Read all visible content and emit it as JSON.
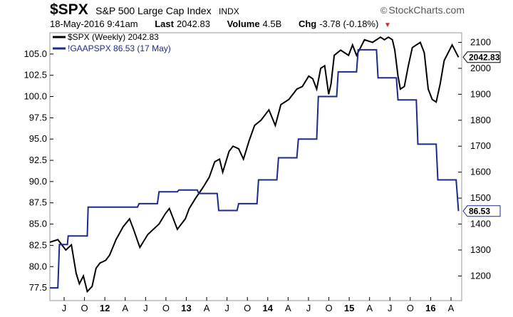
{
  "header": {
    "symbol": "$SPX",
    "index_name": "S&P 500 Large Cap Index",
    "exchange": "INDX",
    "brand": "StockCharts.com",
    "date": "18-May-2016 9:41am",
    "last_label": "Last",
    "last_value": "2042.83",
    "volume_label": "Volume",
    "volume_value": "4.5B",
    "chg_label": "Chg",
    "chg_value": "-3.78 (-0.18%)"
  },
  "chart_data": {
    "type": "line",
    "legend": {
      "placement": "top-left",
      "entries": [
        "$SPX (Weekly) 2042.83",
        "!GAAPSPX 86.53 (17 May)"
      ]
    },
    "x_ticks": [
      "J",
      "O",
      "12",
      "A",
      "J",
      "O",
      "13",
      "A",
      "J",
      "O",
      "14",
      "A",
      "J",
      "O",
      "15",
      "A",
      "J",
      "O",
      "16",
      "A"
    ],
    "left_axis": {
      "ylim": [
        76.0,
        107.5
      ],
      "ticks": [
        "77.5",
        "80.0",
        "82.5",
        "85.0",
        "87.5",
        "90.0",
        "92.5",
        "95.0",
        "97.5",
        "100.0",
        "102.5",
        "105.0"
      ]
    },
    "right_axis": {
      "ylim": [
        1105,
        2137
      ],
      "ticks": [
        "1200",
        "1300",
        "1400",
        "1500",
        "1600",
        "1700",
        "1800",
        "1900",
        "2000",
        "2100"
      ]
    },
    "grid": false,
    "series": [
      {
        "name": "$SPX (Weekly)",
        "axis": "right",
        "color": "#000000",
        "last_label": "2042.83",
        "x": [
          2011.25,
          2011.35,
          2011.45,
          2011.52,
          2011.58,
          2011.62,
          2011.67,
          2011.72,
          2011.78,
          2011.83,
          2011.88,
          2011.95,
          2012.0,
          2012.08,
          2012.17,
          2012.25,
          2012.3,
          2012.38,
          2012.42,
          2012.48,
          2012.55,
          2012.62,
          2012.7,
          2012.75,
          2012.8,
          2012.85,
          2012.9,
          2012.95,
          2013.0,
          2013.08,
          2013.17,
          2013.25,
          2013.32,
          2013.38,
          2013.42,
          2013.5,
          2013.55,
          2013.62,
          2013.68,
          2013.75,
          2013.82,
          2013.9,
          2014.0,
          2014.08,
          2014.15,
          2014.25,
          2014.35,
          2014.42,
          2014.5,
          2014.55,
          2014.6,
          2014.65,
          2014.7,
          2014.75,
          2014.78,
          2014.82,
          2014.9,
          2015.0,
          2015.05,
          2015.1,
          2015.2,
          2015.3,
          2015.4,
          2015.45,
          2015.5,
          2015.55,
          2015.58,
          2015.62,
          2015.65,
          2015.7,
          2015.75,
          2015.8,
          2015.85,
          2015.9,
          2015.95,
          2016.0,
          2016.05,
          2016.1,
          2016.15,
          2016.2,
          2016.25,
          2016.3,
          2016.38
        ],
        "y": [
          1330,
          1340,
          1300,
          1320,
          1210,
          1170,
          1200,
          1140,
          1160,
          1230,
          1250,
          1260,
          1280,
          1340,
          1390,
          1420,
          1380,
          1310,
          1330,
          1360,
          1380,
          1400,
          1440,
          1460,
          1420,
          1380,
          1400,
          1420,
          1460,
          1500,
          1540,
          1580,
          1640,
          1650,
          1600,
          1680,
          1700,
          1690,
          1650,
          1720,
          1780,
          1800,
          1840,
          1780,
          1860,
          1880,
          1920,
          1930,
          1970,
          1960,
          1920,
          2000,
          2010,
          1900,
          1940,
          2050,
          2070,
          2050,
          2090,
          2050,
          2110,
          2100,
          2120,
          2110,
          2120,
          2110,
          2070,
          1970,
          1920,
          1930,
          2010,
          2080,
          2090,
          2100,
          2060,
          1920,
          1880,
          1870,
          1940,
          2030,
          2060,
          2090,
          2042.83
        ]
      },
      {
        "name": "!GAAPSPX",
        "axis": "left",
        "color": "#1c2a8a",
        "last_label": "86.53",
        "x": [
          2011.25,
          2011.35,
          2011.37,
          2011.47,
          2011.48,
          2011.72,
          2011.73,
          2012.35,
          2012.37,
          2012.6,
          2012.62,
          2012.85,
          2012.87,
          2013.1,
          2013.12,
          2013.35,
          2013.37,
          2013.6,
          2013.62,
          2013.85,
          2013.87,
          2014.1,
          2014.12,
          2014.35,
          2014.37,
          2014.6,
          2014.62,
          2014.85,
          2014.87,
          2015.1,
          2015.12,
          2015.35,
          2015.37,
          2015.6,
          2015.62,
          2015.85,
          2015.87,
          2016.1,
          2016.12,
          2016.35,
          2016.38
        ],
        "y": [
          77.5,
          77.5,
          82.6,
          82.6,
          83.6,
          83.6,
          87.0,
          87.0,
          87.4,
          87.4,
          88.8,
          88.8,
          89.0,
          89.0,
          88.6,
          88.6,
          86.6,
          86.6,
          87.4,
          87.4,
          90.2,
          90.2,
          92.8,
          92.8,
          95.0,
          95.0,
          100.0,
          100.0,
          102.9,
          102.9,
          105.5,
          105.5,
          102.2,
          102.2,
          99.6,
          99.6,
          94.4,
          94.4,
          90.2,
          90.2,
          86.53
        ]
      }
    ]
  }
}
